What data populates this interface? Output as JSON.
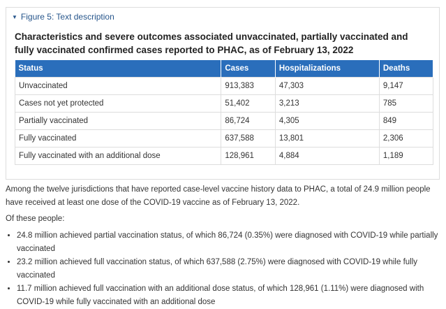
{
  "figure": {
    "summary": "Figure 5: Text description",
    "caption": "Characteristics and severe outcomes associated unvaccinated, partially vaccinated and fully vaccinated confirmed cases reported to PHAC, as of February 13, 2022",
    "table": {
      "header": [
        "Status",
        "Cases",
        "Hospitalizations",
        "Deaths"
      ],
      "rows": [
        [
          "Unvaccinated",
          "913,383",
          "47,303",
          "9,147"
        ],
        [
          "Cases not yet protected",
          "51,402",
          "3,213",
          "785"
        ],
        [
          "Partially vaccinated",
          "86,724",
          "4,305",
          "849"
        ],
        [
          "Fully vaccinated",
          "637,588",
          "13,801",
          "2,306"
        ],
        [
          "Fully vaccinated with an additional dose",
          "128,961",
          "4,884",
          "1,189"
        ]
      ]
    }
  },
  "body": {
    "paragraph": "Among the twelve jurisdictions that have reported case-level vaccine history data to PHAC, a total of 24.9 million people have received at least one dose of the COVID-19 vaccine as of February 13, 2022.",
    "intro": "Of these people:",
    "bullets": [
      "24.8 million achieved partial vaccination status, of which 86,724 (0.35%) were diagnosed with COVID-19 while partially vaccinated",
      "23.2 million achieved full vaccination status, of which 637,588 (2.75%) were diagnosed with COVID-19 while fully vaccinated",
      "11.7 million achieved full vaccination with an additional dose status, of which 128,961 (1.11%) were diagnosed with COVID-19 while fully vaccinated with an additional dose"
    ]
  }
}
